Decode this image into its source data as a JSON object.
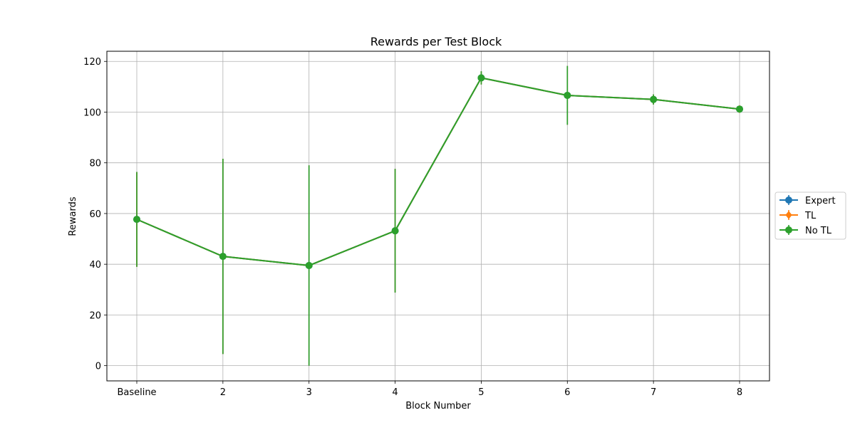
{
  "chart_data": {
    "type": "line",
    "title": "Rewards per Test Block",
    "xlabel": "Block Number",
    "ylabel": "Rewards",
    "categories": [
      "Baseline",
      "2",
      "3",
      "4",
      "5",
      "6",
      "7",
      "8"
    ],
    "ylim": [
      -6,
      124
    ],
    "yticks": [
      0,
      20,
      40,
      60,
      80,
      100,
      120
    ],
    "grid": true,
    "legend_position": "center-right, outside plot",
    "series": [
      {
        "name": "Expert",
        "color": "#1f77b4",
        "marker": "circle",
        "values": [
          57.7,
          43.1,
          39.5,
          53.2,
          113.5,
          106.6,
          105.0,
          101.2
        ],
        "errors": [
          18.7,
          38.5,
          39.5,
          24.4,
          2.6,
          11.6,
          2.0,
          0.5
        ]
      },
      {
        "name": "TL",
        "color": "#ff7f0e",
        "marker": "diamond",
        "values": [
          57.7,
          43.1,
          39.5,
          53.2,
          113.5,
          106.6,
          105.0,
          101.2
        ],
        "errors": [
          18.7,
          38.5,
          39.5,
          24.4,
          2.6,
          11.6,
          2.0,
          0.5
        ]
      },
      {
        "name": "No TL",
        "color": "#2ca02c",
        "marker": "circle",
        "values": [
          57.7,
          43.1,
          39.5,
          53.2,
          113.5,
          106.6,
          105.0,
          101.2
        ],
        "errors": [
          18.7,
          38.5,
          39.5,
          24.4,
          2.6,
          11.6,
          2.0,
          0.5
        ]
      }
    ]
  }
}
